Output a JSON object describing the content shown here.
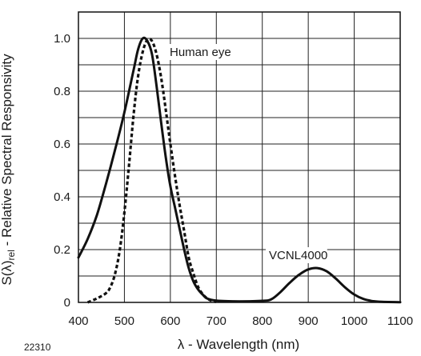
{
  "figure_code": "22310",
  "chart_data": {
    "type": "line",
    "xlabel": "λ - Wavelength (nm)",
    "ylabel": {
      "prefix": "S(λ)",
      "subscript": "rel",
      "suffix": " - Relative Spectral Responsivity"
    },
    "xlim": [
      400,
      1100
    ],
    "ylim": [
      0,
      1.1
    ],
    "x_ticks": [
      "400",
      "500",
      "600",
      "700",
      "800",
      "900",
      "1000",
      "1100"
    ],
    "y_ticks": [
      "0",
      "0.2",
      "0.4",
      "0.6",
      "0.8",
      "1.0"
    ],
    "grid": true,
    "series": [
      {
        "name": "VCNL4000",
        "style": "solid",
        "color": "#111111",
        "points": [
          [
            400,
            0.17
          ],
          [
            420,
            0.24
          ],
          [
            440,
            0.33
          ],
          [
            460,
            0.45
          ],
          [
            480,
            0.58
          ],
          [
            500,
            0.72
          ],
          [
            520,
            0.88
          ],
          [
            530,
            0.96
          ],
          [
            540,
            1.0
          ],
          [
            550,
            0.99
          ],
          [
            560,
            0.94
          ],
          [
            570,
            0.82
          ],
          [
            580,
            0.68
          ],
          [
            590,
            0.55
          ],
          [
            600,
            0.44
          ],
          [
            610,
            0.36
          ],
          [
            620,
            0.28
          ],
          [
            630,
            0.2
          ],
          [
            640,
            0.13
          ],
          [
            650,
            0.08
          ],
          [
            660,
            0.05
          ],
          [
            670,
            0.03
          ],
          [
            680,
            0.015
          ],
          [
            700,
            0.007
          ],
          [
            750,
            0.004
          ],
          [
            800,
            0.006
          ],
          [
            820,
            0.012
          ],
          [
            840,
            0.04
          ],
          [
            860,
            0.075
          ],
          [
            880,
            0.105
          ],
          [
            900,
            0.125
          ],
          [
            920,
            0.13
          ],
          [
            940,
            0.118
          ],
          [
            960,
            0.09
          ],
          [
            980,
            0.057
          ],
          [
            1000,
            0.03
          ],
          [
            1020,
            0.013
          ],
          [
            1040,
            0.005
          ],
          [
            1060,
            0.002
          ],
          [
            1100,
            0.001
          ]
        ]
      },
      {
        "name": "Human eye",
        "style": "dotted",
        "color": "#111111",
        "points": [
          [
            420,
            0.0
          ],
          [
            440,
            0.015
          ],
          [
            460,
            0.035
          ],
          [
            470,
            0.06
          ],
          [
            480,
            0.11
          ],
          [
            490,
            0.2
          ],
          [
            500,
            0.34
          ],
          [
            510,
            0.52
          ],
          [
            520,
            0.71
          ],
          [
            530,
            0.86
          ],
          [
            540,
            0.95
          ],
          [
            550,
            0.995
          ],
          [
            560,
            0.99
          ],
          [
            570,
            0.94
          ],
          [
            580,
            0.85
          ],
          [
            590,
            0.73
          ],
          [
            600,
            0.6
          ],
          [
            610,
            0.48
          ],
          [
            620,
            0.37
          ],
          [
            630,
            0.27
          ],
          [
            640,
            0.17
          ],
          [
            650,
            0.11
          ],
          [
            660,
            0.06
          ],
          [
            670,
            0.032
          ],
          [
            680,
            0.015
          ],
          [
            690,
            0.006
          ],
          [
            700,
            0.002
          ]
        ]
      }
    ],
    "annotations": [
      {
        "text": "Human eye",
        "series": "Human eye"
      },
      {
        "text": "VCNL4000",
        "series": "VCNL4000"
      }
    ]
  }
}
